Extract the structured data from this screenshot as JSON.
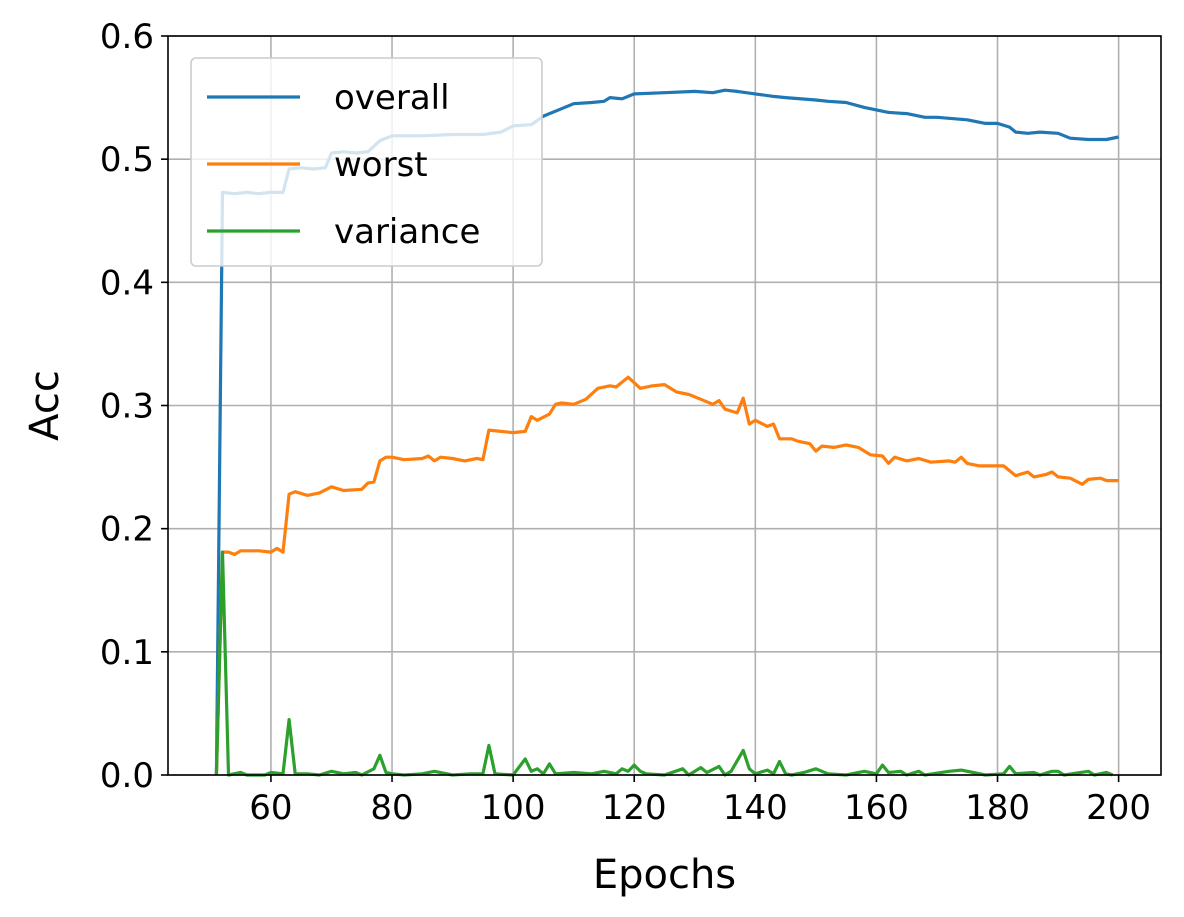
{
  "chart_data": {
    "type": "line",
    "title": "",
    "xlabel": "Epochs",
    "ylabel": "Acc",
    "xlim": [
      43,
      207
    ],
    "ylim": [
      0.0,
      0.6
    ],
    "xticks": [
      60,
      80,
      100,
      120,
      140,
      160,
      180,
      200
    ],
    "yticks": [
      0.0,
      0.1,
      0.2,
      0.3,
      0.4,
      0.5,
      0.6
    ],
    "xtick_labels": [
      "60",
      "80",
      "100",
      "120",
      "140",
      "160",
      "180",
      "200"
    ],
    "ytick_labels": [
      "0.0",
      "0.1",
      "0.2",
      "0.3",
      "0.4",
      "0.5",
      "0.6"
    ],
    "grid": true,
    "legend_position": "top-left",
    "series": [
      {
        "name": "overall",
        "color": "#1f77b4",
        "points": [
          [
            51,
            0.0
          ],
          [
            52,
            0.473
          ],
          [
            54,
            0.472
          ],
          [
            56,
            0.473
          ],
          [
            58,
            0.472
          ],
          [
            60,
            0.473
          ],
          [
            62,
            0.473
          ],
          [
            63,
            0.492
          ],
          [
            65,
            0.493
          ],
          [
            67,
            0.492
          ],
          [
            69,
            0.493
          ],
          [
            70,
            0.505
          ],
          [
            72,
            0.506
          ],
          [
            74,
            0.505
          ],
          [
            76,
            0.506
          ],
          [
            78,
            0.515
          ],
          [
            80,
            0.519
          ],
          [
            85,
            0.519
          ],
          [
            90,
            0.52
          ],
          [
            95,
            0.52
          ],
          [
            98,
            0.522
          ],
          [
            100,
            0.527
          ],
          [
            103,
            0.528
          ],
          [
            105,
            0.535
          ],
          [
            108,
            0.541
          ],
          [
            110,
            0.545
          ],
          [
            113,
            0.546
          ],
          [
            115,
            0.547
          ],
          [
            116,
            0.55
          ],
          [
            118,
            0.549
          ],
          [
            120,
            0.553
          ],
          [
            125,
            0.554
          ],
          [
            130,
            0.555
          ],
          [
            133,
            0.554
          ],
          [
            135,
            0.556
          ],
          [
            137,
            0.555
          ],
          [
            140,
            0.553
          ],
          [
            143,
            0.551
          ],
          [
            145,
            0.55
          ],
          [
            150,
            0.548
          ],
          [
            152,
            0.547
          ],
          [
            155,
            0.546
          ],
          [
            158,
            0.542
          ],
          [
            160,
            0.54
          ],
          [
            162,
            0.538
          ],
          [
            165,
            0.537
          ],
          [
            168,
            0.534
          ],
          [
            170,
            0.534
          ],
          [
            175,
            0.532
          ],
          [
            178,
            0.529
          ],
          [
            180,
            0.529
          ],
          [
            182,
            0.526
          ],
          [
            183,
            0.522
          ],
          [
            185,
            0.521
          ],
          [
            187,
            0.522
          ],
          [
            190,
            0.521
          ],
          [
            192,
            0.517
          ],
          [
            195,
            0.516
          ],
          [
            198,
            0.516
          ],
          [
            200,
            0.518
          ]
        ]
      },
      {
        "name": "worst",
        "color": "#ff7f0e",
        "points": [
          [
            51,
            0.0
          ],
          [
            52,
            0.181
          ],
          [
            53,
            0.181
          ],
          [
            54,
            0.179
          ],
          [
            55,
            0.182
          ],
          [
            58,
            0.182
          ],
          [
            60,
            0.181
          ],
          [
            61,
            0.184
          ],
          [
            62,
            0.181
          ],
          [
            63,
            0.228
          ],
          [
            64,
            0.23
          ],
          [
            66,
            0.227
          ],
          [
            68,
            0.229
          ],
          [
            70,
            0.234
          ],
          [
            72,
            0.231
          ],
          [
            75,
            0.232
          ],
          [
            76,
            0.237
          ],
          [
            77,
            0.238
          ],
          [
            78,
            0.255
          ],
          [
            79,
            0.258
          ],
          [
            80,
            0.258
          ],
          [
            82,
            0.256
          ],
          [
            85,
            0.257
          ],
          [
            86,
            0.259
          ],
          [
            87,
            0.255
          ],
          [
            88,
            0.258
          ],
          [
            90,
            0.257
          ],
          [
            92,
            0.255
          ],
          [
            94,
            0.257
          ],
          [
            95,
            0.256
          ],
          [
            96,
            0.28
          ],
          [
            98,
            0.279
          ],
          [
            100,
            0.278
          ],
          [
            102,
            0.279
          ],
          [
            103,
            0.291
          ],
          [
            104,
            0.288
          ],
          [
            106,
            0.293
          ],
          [
            107,
            0.301
          ],
          [
            108,
            0.302
          ],
          [
            110,
            0.301
          ],
          [
            112,
            0.305
          ],
          [
            114,
            0.314
          ],
          [
            116,
            0.316
          ],
          [
            117,
            0.315
          ],
          [
            118,
            0.319
          ],
          [
            119,
            0.323
          ],
          [
            121,
            0.314
          ],
          [
            123,
            0.316
          ],
          [
            125,
            0.317
          ],
          [
            127,
            0.311
          ],
          [
            129,
            0.309
          ],
          [
            131,
            0.305
          ],
          [
            133,
            0.301
          ],
          [
            134,
            0.304
          ],
          [
            135,
            0.297
          ],
          [
            137,
            0.294
          ],
          [
            138,
            0.306
          ],
          [
            139,
            0.285
          ],
          [
            140,
            0.288
          ],
          [
            142,
            0.283
          ],
          [
            143,
            0.285
          ],
          [
            144,
            0.273
          ],
          [
            146,
            0.273
          ],
          [
            147,
            0.271
          ],
          [
            149,
            0.269
          ],
          [
            150,
            0.263
          ],
          [
            151,
            0.267
          ],
          [
            153,
            0.266
          ],
          [
            155,
            0.268
          ],
          [
            157,
            0.266
          ],
          [
            159,
            0.26
          ],
          [
            161,
            0.259
          ],
          [
            162,
            0.253
          ],
          [
            163,
            0.258
          ],
          [
            165,
            0.255
          ],
          [
            167,
            0.257
          ],
          [
            169,
            0.254
          ],
          [
            172,
            0.255
          ],
          [
            173,
            0.254
          ],
          [
            174,
            0.258
          ],
          [
            175,
            0.253
          ],
          [
            177,
            0.251
          ],
          [
            179,
            0.251
          ],
          [
            181,
            0.251
          ],
          [
            183,
            0.243
          ],
          [
            185,
            0.246
          ],
          [
            186,
            0.242
          ],
          [
            188,
            0.244
          ],
          [
            189,
            0.246
          ],
          [
            190,
            0.242
          ],
          [
            192,
            0.241
          ],
          [
            194,
            0.236
          ],
          [
            195,
            0.24
          ],
          [
            197,
            0.241
          ],
          [
            198,
            0.239
          ],
          [
            200,
            0.239
          ]
        ]
      },
      {
        "name": "variance",
        "color": "#2ca02c",
        "points": [
          [
            51,
            0.0
          ],
          [
            52,
            0.181
          ],
          [
            53,
            0.0
          ],
          [
            55,
            0.002
          ],
          [
            56,
            0.0
          ],
          [
            59,
            0.0
          ],
          [
            60,
            0.002
          ],
          [
            62,
            0.001
          ],
          [
            63,
            0.045
          ],
          [
            64,
            0.001
          ],
          [
            66,
            0.001
          ],
          [
            68,
            0.0
          ],
          [
            70,
            0.003
          ],
          [
            72,
            0.001
          ],
          [
            74,
            0.002
          ],
          [
            75,
            0.0
          ],
          [
            77,
            0.005
          ],
          [
            78,
            0.016
          ],
          [
            79,
            0.002
          ],
          [
            80,
            0.001
          ],
          [
            82,
            0.0
          ],
          [
            85,
            0.001
          ],
          [
            87,
            0.003
          ],
          [
            90,
            0.0
          ],
          [
            93,
            0.001
          ],
          [
            95,
            0.001
          ],
          [
            96,
            0.024
          ],
          [
            97,
            0.001
          ],
          [
            100,
            0.0
          ],
          [
            102,
            0.013
          ],
          [
            103,
            0.003
          ],
          [
            104,
            0.005
          ],
          [
            105,
            0.001
          ],
          [
            106,
            0.009
          ],
          [
            107,
            0.001
          ],
          [
            110,
            0.002
          ],
          [
            113,
            0.001
          ],
          [
            115,
            0.003
          ],
          [
            117,
            0.001
          ],
          [
            118,
            0.005
          ],
          [
            119,
            0.003
          ],
          [
            120,
            0.008
          ],
          [
            121,
            0.003
          ],
          [
            122,
            0.001
          ],
          [
            125,
            0.0
          ],
          [
            128,
            0.005
          ],
          [
            129,
            0.0
          ],
          [
            131,
            0.006
          ],
          [
            132,
            0.002
          ],
          [
            134,
            0.007
          ],
          [
            135,
            0.0
          ],
          [
            136,
            0.003
          ],
          [
            138,
            0.02
          ],
          [
            139,
            0.005
          ],
          [
            140,
            0.001
          ],
          [
            142,
            0.004
          ],
          [
            143,
            0.001
          ],
          [
            144,
            0.011
          ],
          [
            145,
            0.001
          ],
          [
            146,
            0.0
          ],
          [
            148,
            0.002
          ],
          [
            150,
            0.005
          ],
          [
            152,
            0.001
          ],
          [
            155,
            0.0
          ],
          [
            158,
            0.003
          ],
          [
            160,
            0.001
          ],
          [
            161,
            0.008
          ],
          [
            162,
            0.002
          ],
          [
            164,
            0.003
          ],
          [
            165,
            0.0
          ],
          [
            167,
            0.003
          ],
          [
            168,
            0.0
          ],
          [
            172,
            0.003
          ],
          [
            174,
            0.004
          ],
          [
            176,
            0.002
          ],
          [
            178,
            0.0
          ],
          [
            181,
            0.001
          ],
          [
            182,
            0.007
          ],
          [
            183,
            0.001
          ],
          [
            186,
            0.002
          ],
          [
            187,
            0.0
          ],
          [
            189,
            0.003
          ],
          [
            190,
            0.003
          ],
          [
            191,
            0.0
          ],
          [
            195,
            0.003
          ],
          [
            196,
            0.0
          ],
          [
            198,
            0.002
          ],
          [
            199,
            0.0
          ]
        ]
      }
    ]
  }
}
